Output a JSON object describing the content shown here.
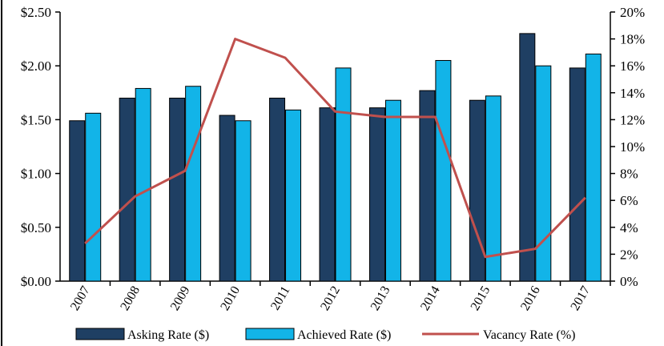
{
  "chart_data": {
    "type": "bar",
    "categories": [
      "2007",
      "2008",
      "2009",
      "2010",
      "2011",
      "2012",
      "2013",
      "2014",
      "2015",
      "2016",
      "2017"
    ],
    "series": [
      {
        "name": "Asking Rate ($)",
        "kind": "bar",
        "axis": "left",
        "color": "#1F3F63",
        "values": [
          1.49,
          1.7,
          1.7,
          1.54,
          1.7,
          1.61,
          1.61,
          1.77,
          1.68,
          2.3,
          1.98
        ]
      },
      {
        "name": "Achieved Rate ($)",
        "kind": "bar",
        "axis": "left",
        "color": "#12B4E8",
        "values": [
          1.56,
          1.79,
          1.81,
          1.49,
          1.59,
          1.98,
          1.68,
          2.05,
          1.72,
          2.0,
          2.11
        ]
      },
      {
        "name": "Vacancy Rate (%)",
        "kind": "line",
        "axis": "right",
        "color": "#C0504D",
        "values": [
          2.8,
          6.3,
          8.2,
          18.0,
          16.6,
          12.6,
          12.2,
          12.2,
          1.8,
          2.4,
          6.2
        ]
      }
    ],
    "y_left": {
      "ylim": [
        0,
        2.5
      ],
      "ticks": [
        "$0.00",
        "$0.50",
        "$1.00",
        "$1.50",
        "$2.00",
        "$2.50"
      ]
    },
    "y_right": {
      "ylim": [
        0,
        20
      ],
      "ticks": [
        "0%",
        "2%",
        "4%",
        "6%",
        "8%",
        "10%",
        "12%",
        "14%",
        "16%",
        "18%",
        "20%"
      ]
    },
    "grid": false,
    "legend_position": "bottom"
  }
}
